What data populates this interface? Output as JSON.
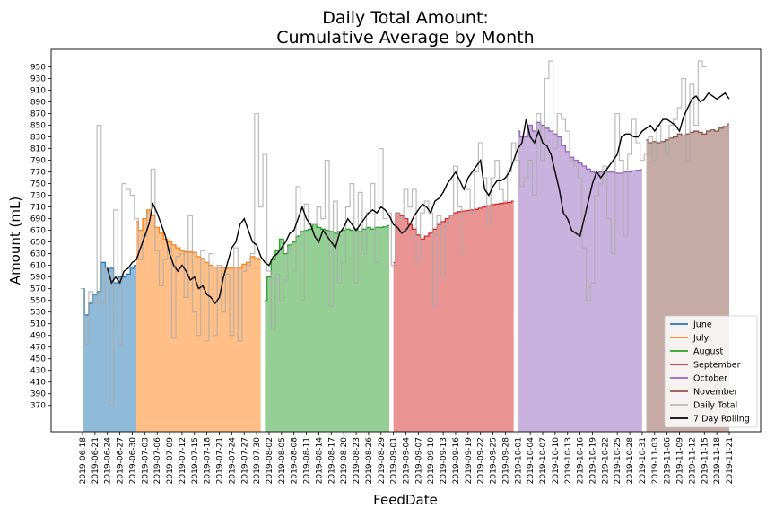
{
  "chart_data": {
    "type": "area",
    "title": "Daily Total Amount:",
    "subtitle": "Cumulative Average by Month",
    "xlabel": "FeedDate",
    "ylabel": "Amount (mL)",
    "x_start": "2019-06-18",
    "x_end": "2019-11-21",
    "ylim": [
      325,
      980
    ],
    "yticks": [
      370,
      390,
      410,
      430,
      450,
      470,
      490,
      510,
      530,
      550,
      570,
      590,
      610,
      630,
      650,
      670,
      690,
      710,
      730,
      750,
      770,
      790,
      810,
      830,
      850,
      870,
      890,
      910,
      930,
      950
    ],
    "xticks": [
      "2019-06-18",
      "2019-06-21",
      "2019-06-24",
      "2019-06-27",
      "2019-06-30",
      "2019-07-03",
      "2019-07-06",
      "2019-07-09",
      "2019-07-12",
      "2019-07-15",
      "2019-07-18",
      "2019-07-21",
      "2019-07-24",
      "2019-07-27",
      "2019-07-30",
      "2019-08-02",
      "2019-08-05",
      "2019-08-08",
      "2019-08-11",
      "2019-08-14",
      "2019-08-17",
      "2019-08-20",
      "2019-08-23",
      "2019-08-26",
      "2019-08-29",
      "2019-09-01",
      "2019-09-04",
      "2019-09-07",
      "2019-09-10",
      "2019-09-13",
      "2019-09-16",
      "2019-09-19",
      "2019-09-22",
      "2019-09-25",
      "2019-09-28",
      "2019-10-01",
      "2019-10-04",
      "2019-10-07",
      "2019-10-10",
      "2019-10-13",
      "2019-10-16",
      "2019-10-19",
      "2019-10-22",
      "2019-10-25",
      "2019-10-28",
      "2019-10-31",
      "2019-11-03",
      "2019-11-06",
      "2019-11-09",
      "2019-11-12",
      "2019-11-15",
      "2019-11-18",
      "2019-11-21"
    ],
    "grid": false,
    "legend_position": "bottom-right",
    "series": [
      {
        "name": "June",
        "color": "#1f77b4",
        "start": "2019-06-18",
        "values": [
          570,
          525,
          545,
          560,
          565,
          615,
          605,
          605,
          580,
          590,
          590,
          595,
          605,
          610
        ]
      },
      {
        "name": "July",
        "color": "#ff7f0e",
        "start": "2019-07-01",
        "values": [
          685,
          670,
          690,
          705,
          695,
          675,
          665,
          655,
          650,
          645,
          640,
          635,
          633,
          633,
          632,
          625,
          622,
          615,
          610,
          607,
          607,
          606,
          605,
          605,
          607,
          605,
          612,
          615,
          625,
          622,
          620
        ]
      },
      {
        "name": "August",
        "color": "#2ca02c",
        "start": "2019-08-01",
        "values": [
          550,
          590,
          620,
          635,
          655,
          630,
          645,
          650,
          660,
          668,
          670,
          672,
          680,
          675,
          672,
          670,
          668,
          665,
          668,
          670,
          672,
          670,
          672,
          668,
          672,
          675,
          672,
          675,
          675,
          676,
          678
        ]
      },
      {
        "name": "September",
        "color": "#d62728",
        "start": "2019-09-01",
        "values": [
          615,
          700,
          695,
          690,
          680,
          672,
          662,
          655,
          660,
          665,
          672,
          680,
          685,
          690,
          695,
          700,
          702,
          703,
          704,
          705,
          706,
          708,
          710,
          712,
          714,
          715,
          716,
          717,
          718,
          720
        ]
      },
      {
        "name": "October",
        "color": "#9467bd",
        "start": "2019-10-01",
        "values": [
          840,
          830,
          830,
          850,
          840,
          855,
          850,
          845,
          840,
          835,
          830,
          815,
          805,
          795,
          790,
          785,
          780,
          775,
          770,
          768,
          770,
          770,
          770,
          770,
          768,
          768,
          770,
          770,
          772,
          773,
          774
        ]
      },
      {
        "name": "November",
        "color": "#8c564b",
        "start": "2019-11-01",
        "values": [
          825,
          820,
          822,
          820,
          822,
          825,
          828,
          830,
          835,
          832,
          835,
          838,
          840,
          838,
          835,
          840,
          842,
          840,
          845,
          848,
          852
        ]
      },
      {
        "name": "Daily Total",
        "color": "#aaaaaa",
        "start": "2019-06-18",
        "values": [
          570,
          475,
          565,
          545,
          850,
          545,
          605,
          370,
          705,
          475,
          750,
          740,
          730,
          690,
          620,
          660,
          700,
          775,
          635,
          575,
          620,
          640,
          485,
          625,
          630,
          555,
          695,
          530,
          490,
          635,
          480,
          630,
          490,
          610,
          530,
          595,
          490,
          640,
          480,
          600,
          610,
          630,
          870,
          710,
          800,
          600,
          500,
          595,
          550,
          585,
          640,
          600,
          745,
          550,
          715,
          680,
          680,
          710,
          690,
          790,
          540,
          720,
          580,
          615,
          710,
          750,
          580,
          735,
          630,
          700,
          750,
          615,
          810,
          690,
          700,
          610,
          700,
          690,
          740,
          710,
          740,
          615,
          700,
          720,
          700,
          540,
          695,
          590,
          680,
          695,
          780,
          710,
          630,
          740,
          700,
          770,
          820,
          760,
          680,
          760,
          790,
          740,
          720,
          770,
          820,
          790,
          745,
          760,
          790,
          730,
          870,
          790,
          930,
          960,
          810,
          870,
          860,
          840,
          790,
          780,
          760,
          640,
          550,
          580,
          730,
          750,
          780,
          690,
          630,
          870,
          790,
          660,
          800,
          860,
          820,
          790,
          800,
          830,
          790,
          850,
          820,
          800,
          850,
          860,
          880,
          930,
          790,
          920,
          850,
          960,
          950
        ]
      },
      {
        "name": "7 Day Rolling",
        "color": "#000000",
        "start": "2019-06-18",
        "values": [
          null,
          null,
          null,
          null,
          null,
          null,
          605,
          580,
          590,
          580,
          600,
          605,
          615,
          620,
          640,
          660,
          680,
          715,
          700,
          680,
          660,
          630,
          610,
          600,
          610,
          600,
          585,
          590,
          570,
          575,
          560,
          555,
          545,
          555,
          590,
          615,
          640,
          650,
          680,
          690,
          670,
          650,
          645,
          625,
          615,
          610,
          625,
          630,
          640,
          650,
          665,
          670,
          690,
          710,
          690,
          680,
          660,
          650,
          670,
          660,
          650,
          640,
          665,
          675,
          690,
          680,
          670,
          680,
          690,
          700,
          705,
          700,
          710,
          705,
          695,
          680,
          675,
          665,
          670,
          680,
          695,
          705,
          715,
          710,
          700,
          720,
          725,
          735,
          750,
          760,
          770,
          755,
          740,
          760,
          770,
          780,
          790,
          740,
          730,
          745,
          755,
          755,
          760,
          770,
          790,
          810,
          820,
          860,
          830,
          820,
          840,
          820,
          815,
          800,
          770,
          740,
          700,
          690,
          670,
          665,
          660,
          690,
          720,
          750,
          770,
          760,
          770,
          780,
          790,
          800,
          830,
          835,
          835,
          830,
          830,
          840,
          845,
          850,
          840,
          850,
          860,
          860,
          855,
          850,
          840,
          865,
          880,
          895,
          900,
          890,
          895,
          905,
          900,
          895,
          900,
          905,
          895
        ]
      }
    ]
  }
}
